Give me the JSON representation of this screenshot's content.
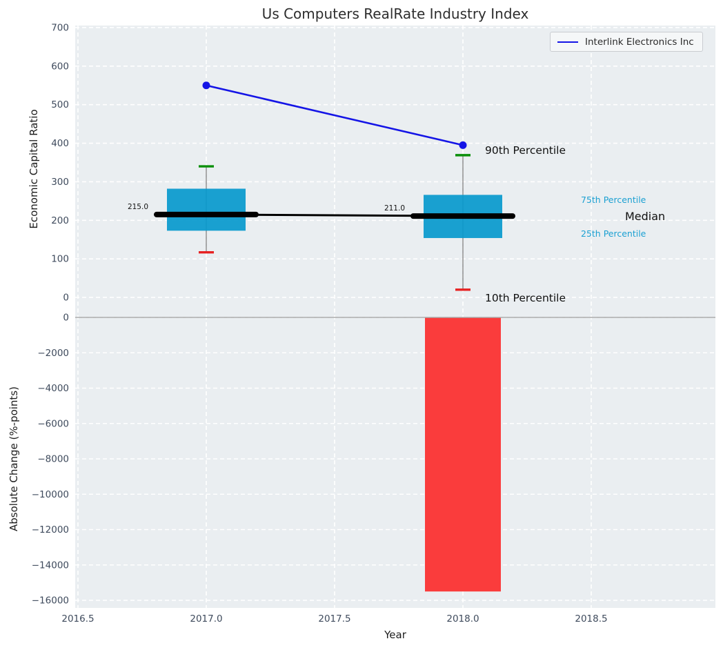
{
  "title": "Us Computers RealRate Industry Index",
  "legend": {
    "label": "Interlink Electronics Inc",
    "color": "#1414e6",
    "position": "upper right"
  },
  "annotations": {
    "p90": "90th Percentile",
    "p10": "10th Percentile",
    "p75": "75th Percentile",
    "median": "Median",
    "p25": "25th Percentile"
  },
  "colors": {
    "plot_background": "#eaeef1",
    "gridline": "#ffffff",
    "tick_label": "#3e4a5c",
    "box_fill": "#0699cd",
    "whisker": "#808080",
    "cap_high": "#0a8f0a",
    "cap_low": "#e62222",
    "median": "#000000",
    "company_line": "#1414e6",
    "bar_fill": "#fa3c3c",
    "zero_line": "#aaaaaa",
    "percentile_label": "#1ba0d2"
  },
  "chart_data": [
    {
      "type": "box",
      "title": "Us Computers RealRate Industry Index",
      "ylabel": "Economic Capital Ratio",
      "ylim": [
        -25,
        707
      ],
      "grid": true,
      "yticks": [
        0,
        100,
        200,
        300,
        400,
        500,
        600,
        700
      ],
      "boxes": [
        {
          "x": 2017,
          "p10": 117,
          "p25": 173,
          "median": 215,
          "p75": 282,
          "p90": 340,
          "median_label": "215.0"
        },
        {
          "x": 2018,
          "p10": 20,
          "p25": 154,
          "median": 211,
          "p75": 266,
          "p90": 369,
          "median_label": "211.0"
        }
      ],
      "median_series": {
        "x": [
          2017,
          2018
        ],
        "y": [
          215,
          211
        ]
      },
      "series": [
        {
          "name": "Interlink Electronics Inc",
          "x": [
            2017,
            2018
          ],
          "y": [
            550,
            395
          ]
        }
      ],
      "legend_position": "upper right"
    },
    {
      "type": "bar",
      "xlabel": "Year",
      "ylabel": "Absolute Change (%-points)",
      "xlim": [
        2016.49,
        2018.98
      ],
      "ylim": [
        -16430,
        580
      ],
      "grid": true,
      "xticks": [
        {
          "v": 2016.5,
          "label": "2016.5"
        },
        {
          "v": 2017.0,
          "label": "2017.0"
        },
        {
          "v": 2017.5,
          "label": "2017.5"
        },
        {
          "v": 2018.0,
          "label": "2018.0"
        },
        {
          "v": 2018.5,
          "label": "2018.5"
        }
      ],
      "yticks": [
        0,
        -2000,
        -4000,
        -6000,
        -8000,
        -10000,
        -12000,
        -14000,
        -16000
      ],
      "bars": [
        {
          "x": 2018,
          "value": -15500
        }
      ]
    }
  ]
}
